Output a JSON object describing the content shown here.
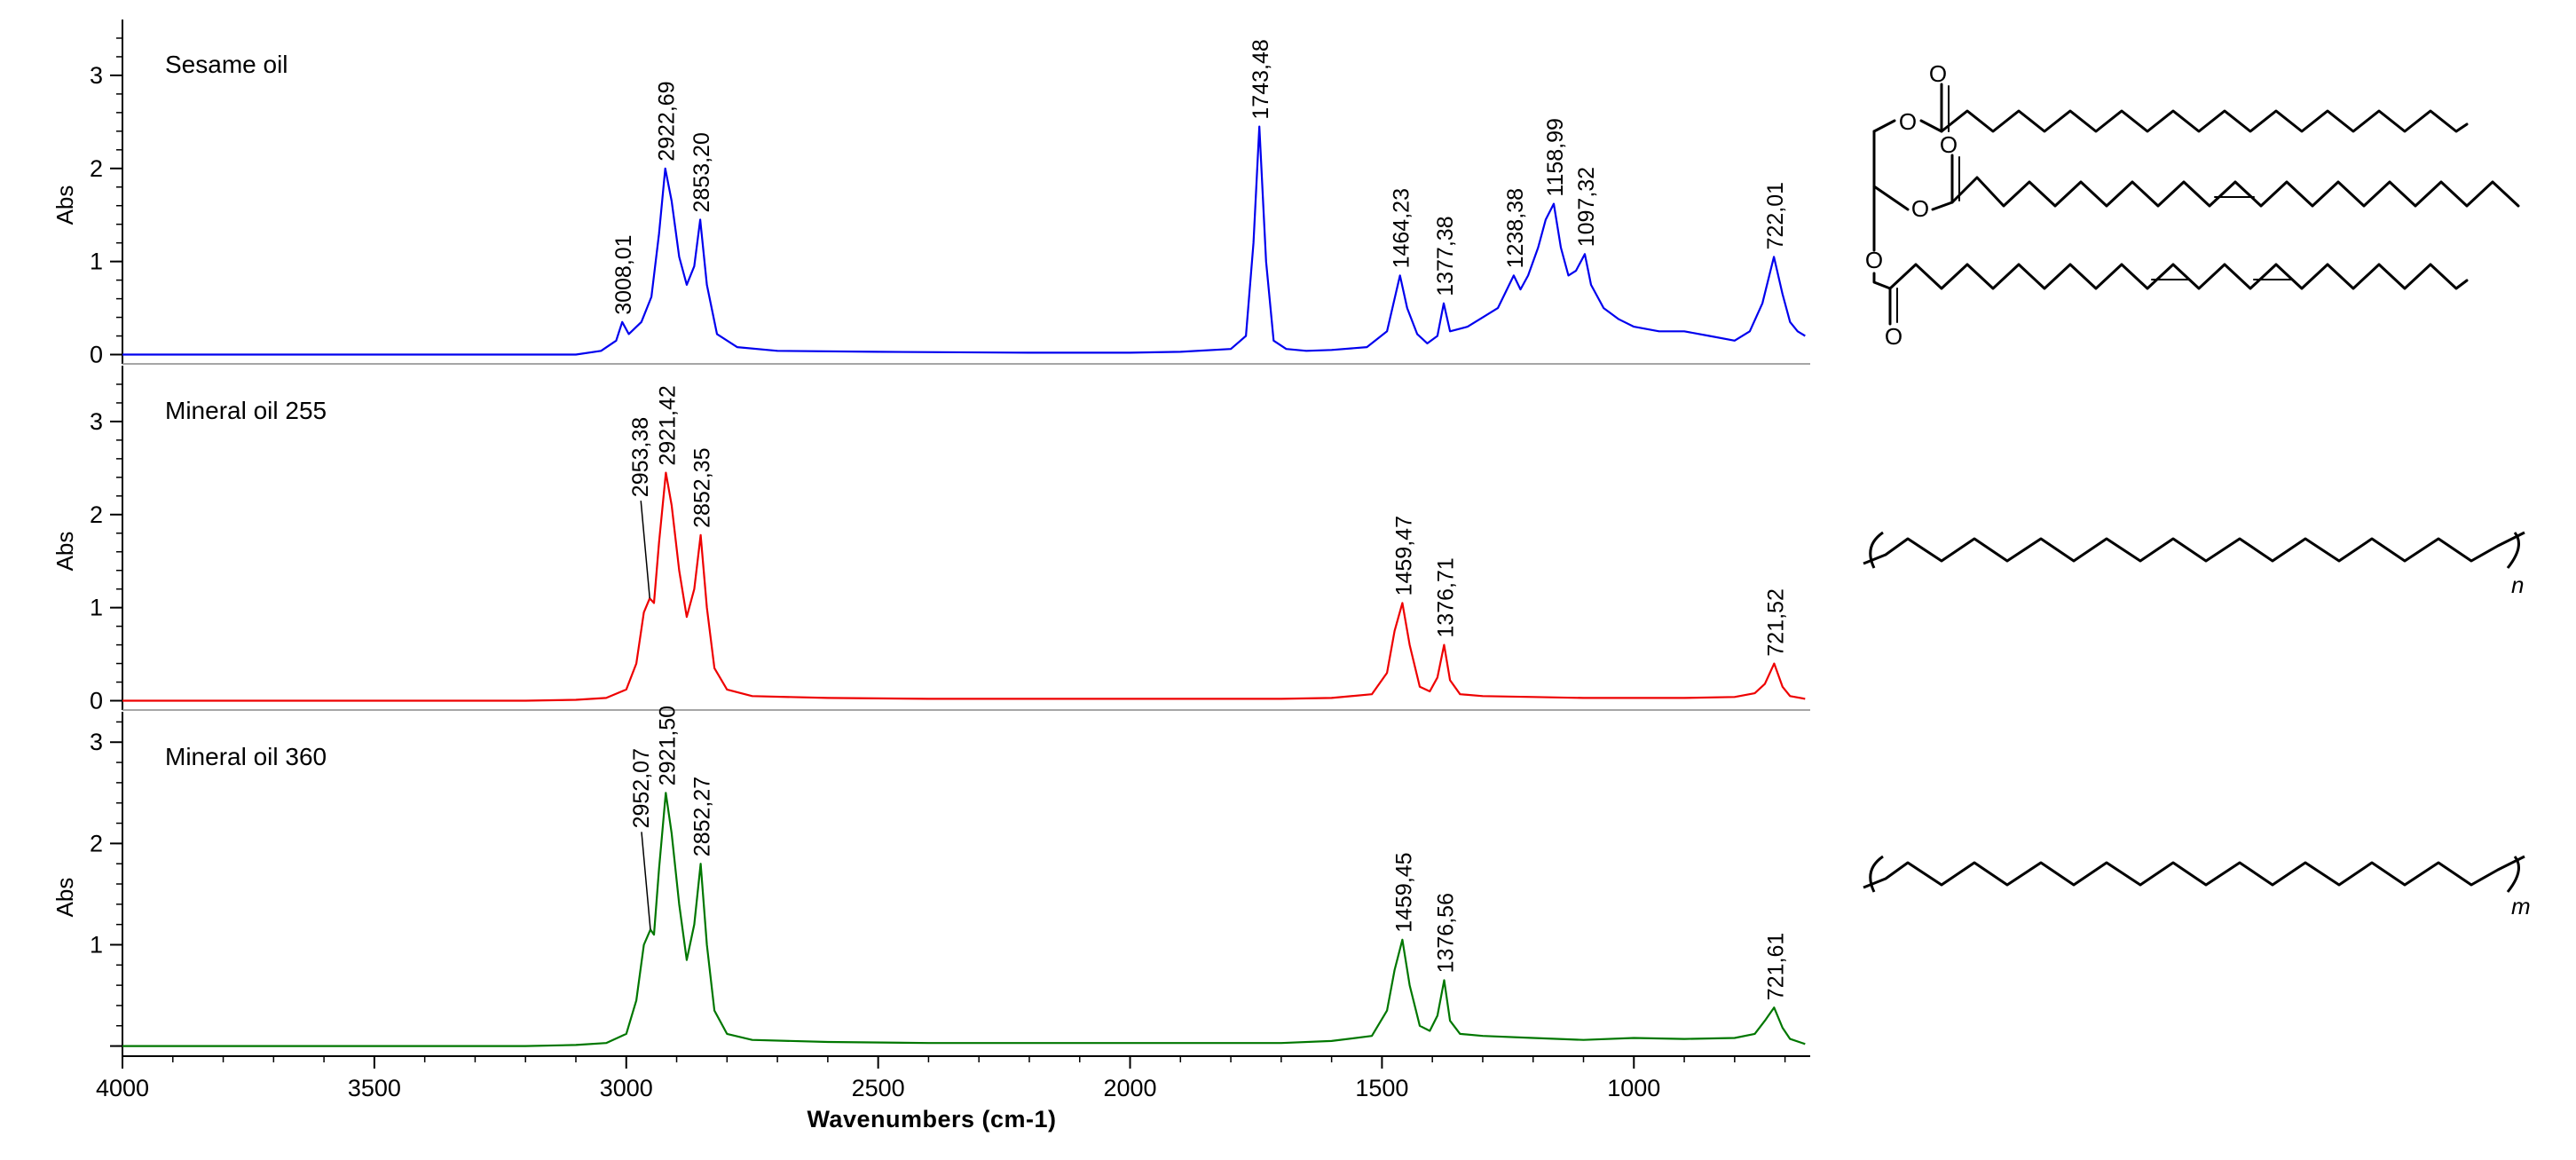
{
  "chart_data": {
    "type": "line",
    "x_axis": {
      "label": "Wavenumbers (cm-1)",
      "range": [
        4000,
        650
      ],
      "reversed": true,
      "ticks": [
        4000,
        3500,
        3000,
        2500,
        2000,
        1500,
        1000
      ]
    },
    "y_axis": {
      "label": "Abs",
      "ticks": [
        0,
        1,
        2,
        3
      ]
    },
    "grid": false,
    "legend": "none",
    "panels": [
      {
        "title": "Sesame oil",
        "color": "#0000ee",
        "ylim": [
          -0.1,
          3.6
        ],
        "yticks": [
          "0",
          "1",
          "2",
          "3"
        ],
        "x": [
          4000,
          3100,
          3050,
          3020,
          3008.01,
          2995,
          2970,
          2950,
          2935,
          2922.69,
          2910,
          2895,
          2880,
          2865,
          2853.2,
          2840,
          2820,
          2780,
          2700,
          2500,
          2200,
          2000,
          1900,
          1800,
          1770,
          1755,
          1743.48,
          1730,
          1715,
          1690,
          1650,
          1600,
          1530,
          1490,
          1475,
          1464.23,
          1450,
          1430,
          1410,
          1390,
          1377.38,
          1365,
          1330,
          1300,
          1270,
          1238.38,
          1225,
          1210,
          1190,
          1175,
          1158.99,
          1145,
          1130,
          1115,
          1097.32,
          1085,
          1060,
          1030,
          1000,
          950,
          900,
          850,
          800,
          770,
          745,
          722.01,
          705,
          690,
          675,
          660
        ],
        "y": [
          0.0,
          0.0,
          0.04,
          0.15,
          0.35,
          0.22,
          0.35,
          0.62,
          1.3,
          2.0,
          1.65,
          1.05,
          0.75,
          0.95,
          1.45,
          0.75,
          0.22,
          0.08,
          0.04,
          0.03,
          0.02,
          0.02,
          0.03,
          0.06,
          0.2,
          1.2,
          2.45,
          1.0,
          0.15,
          0.06,
          0.04,
          0.05,
          0.08,
          0.25,
          0.6,
          0.85,
          0.5,
          0.22,
          0.12,
          0.2,
          0.55,
          0.25,
          0.3,
          0.4,
          0.5,
          0.85,
          0.7,
          0.85,
          1.15,
          1.45,
          1.62,
          1.15,
          0.85,
          0.9,
          1.08,
          0.75,
          0.5,
          0.38,
          0.3,
          0.25,
          0.25,
          0.2,
          0.15,
          0.25,
          0.55,
          1.05,
          0.65,
          0.35,
          0.25,
          0.2
        ],
        "peak_labels": [
          {
            "x": 3008.01,
            "y": 0.35,
            "text": "3008,01"
          },
          {
            "x": 2922.69,
            "y": 2.0,
            "text": "2922,69"
          },
          {
            "x": 2853.2,
            "y": 1.45,
            "text": "2853,20"
          },
          {
            "x": 1743.48,
            "y": 2.45,
            "text": "1743,48"
          },
          {
            "x": 1464.23,
            "y": 0.85,
            "text": "1464,23"
          },
          {
            "x": 1377.38,
            "y": 0.55,
            "text": "1377,38"
          },
          {
            "x": 1238.38,
            "y": 0.85,
            "text": "1238,38"
          },
          {
            "x": 1158.99,
            "y": 1.62,
            "text": "1158,99"
          },
          {
            "x": 1097.32,
            "y": 1.08,
            "text": "1097,32"
          },
          {
            "x": 722.01,
            "y": 1.05,
            "text": "722,01"
          }
        ]
      },
      {
        "title": "Mineral oil 255",
        "color": "#ee0000",
        "ylim": [
          -0.1,
          3.6
        ],
        "yticks": [
          "0",
          "1",
          "2",
          "3"
        ],
        "x": [
          4000,
          3200,
          3100,
          3040,
          3000,
          2980,
          2965,
          2953.38,
          2945,
          2935,
          2921.42,
          2910,
          2895,
          2880,
          2865,
          2852.35,
          2840,
          2825,
          2800,
          2750,
          2600,
          2400,
          2000,
          1700,
          1600,
          1520,
          1490,
          1475,
          1459.47,
          1445,
          1425,
          1405,
          1390,
          1376.71,
          1365,
          1345,
          1300,
          1200,
          1100,
          1000,
          900,
          800,
          760,
          740,
          721.52,
          705,
          690,
          660
        ],
        "y": [
          0.0,
          0.0,
          0.01,
          0.03,
          0.12,
          0.4,
          0.95,
          1.1,
          1.05,
          1.7,
          2.45,
          2.1,
          1.4,
          0.9,
          1.2,
          1.78,
          1.0,
          0.35,
          0.12,
          0.05,
          0.03,
          0.02,
          0.02,
          0.02,
          0.03,
          0.07,
          0.3,
          0.75,
          1.05,
          0.6,
          0.15,
          0.1,
          0.25,
          0.6,
          0.22,
          0.07,
          0.05,
          0.04,
          0.03,
          0.03,
          0.03,
          0.04,
          0.08,
          0.18,
          0.4,
          0.15,
          0.05,
          0.02
        ],
        "peak_labels": [
          {
            "x": 2953.38,
            "y": 1.1,
            "text": "2953,38"
          },
          {
            "x": 2921.42,
            "y": 2.45,
            "text": "2921,42"
          },
          {
            "x": 2852.35,
            "y": 1.78,
            "text": "2852,35"
          },
          {
            "x": 1459.47,
            "y": 1.05,
            "text": "1459,47"
          },
          {
            "x": 1376.71,
            "y": 0.6,
            "text": "1376,71"
          },
          {
            "x": 721.52,
            "y": 0.4,
            "text": "721,52"
          }
        ]
      },
      {
        "title": "Mineral oil 360",
        "color": "#007700",
        "ylim": [
          -0.1,
          3.3
        ],
        "yticks": [
          "",
          "1",
          "2",
          "3"
        ],
        "x": [
          4000,
          3200,
          3100,
          3040,
          3000,
          2980,
          2965,
          2952.07,
          2945,
          2935,
          2921.5,
          2910,
          2895,
          2880,
          2865,
          2852.27,
          2840,
          2825,
          2800,
          2750,
          2600,
          2400,
          2000,
          1700,
          1600,
          1520,
          1490,
          1475,
          1459.45,
          1445,
          1425,
          1405,
          1390,
          1376.56,
          1365,
          1345,
          1300,
          1200,
          1100,
          1000,
          900,
          800,
          760,
          740,
          721.61,
          705,
          690,
          660
        ],
        "y": [
          0.0,
          0.0,
          0.01,
          0.03,
          0.12,
          0.45,
          1.0,
          1.15,
          1.1,
          1.75,
          2.5,
          2.1,
          1.4,
          0.85,
          1.2,
          1.8,
          1.0,
          0.35,
          0.12,
          0.06,
          0.04,
          0.03,
          0.03,
          0.03,
          0.05,
          0.1,
          0.35,
          0.75,
          1.05,
          0.6,
          0.2,
          0.15,
          0.3,
          0.65,
          0.25,
          0.12,
          0.1,
          0.08,
          0.06,
          0.08,
          0.07,
          0.08,
          0.12,
          0.25,
          0.38,
          0.18,
          0.07,
          0.02
        ],
        "peak_labels": [
          {
            "x": 2952.07,
            "y": 1.15,
            "text": "2952,07"
          },
          {
            "x": 2921.5,
            "y": 2.5,
            "text": "2921,50"
          },
          {
            "x": 2852.27,
            "y": 1.8,
            "text": "2852,27"
          },
          {
            "x": 1459.45,
            "y": 1.05,
            "text": "1459,45"
          },
          {
            "x": 1376.56,
            "y": 0.65,
            "text": "1376,56"
          },
          {
            "x": 721.61,
            "y": 0.38,
            "text": "721,61"
          }
        ]
      }
    ]
  },
  "structures": {
    "triglyceride_atoms": [
      "O",
      "O",
      "O",
      "O",
      "O",
      "O"
    ],
    "polymer_n": "n",
    "polymer_m": "m"
  }
}
